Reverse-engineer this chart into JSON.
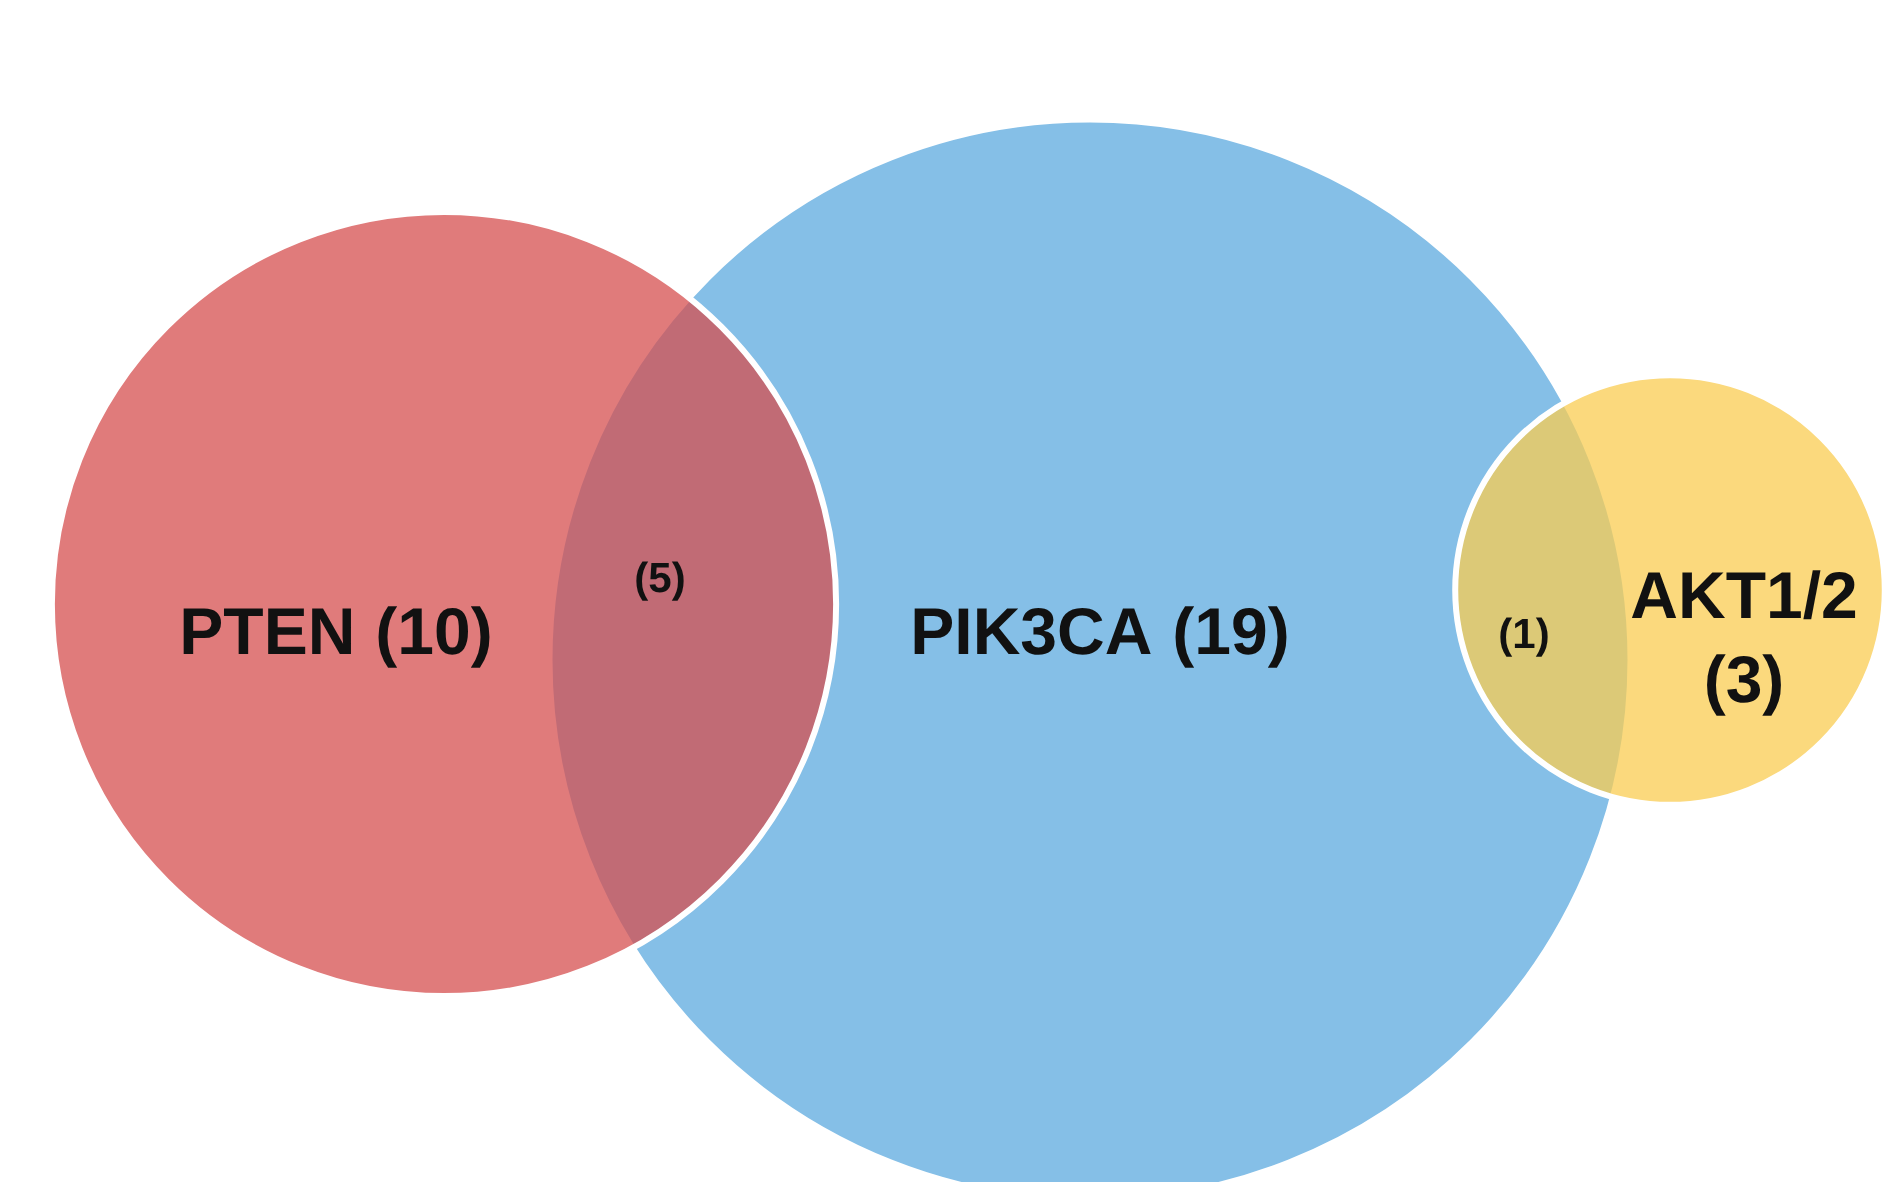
{
  "chart_data": {
    "type": "other",
    "categories": [
      "PTEN",
      "PIK3CA",
      "AKT1/2"
    ],
    "values": [
      10,
      19,
      3
    ],
    "value_labels": [
      "(10)",
      "(19)",
      "(3)"
    ],
    "colors": [
      "#e07b7b",
      "#85bfe7",
      "#fbd97d"
    ],
    "annotations": [
      "(5)",
      "(1)"
    ]
  }
}
